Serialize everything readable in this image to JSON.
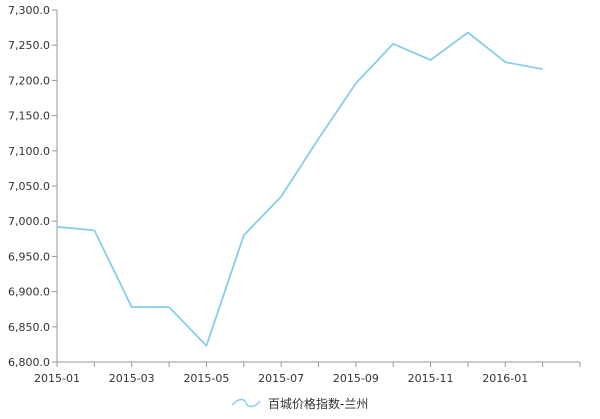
{
  "chart_data": {
    "type": "line",
    "title": "",
    "xlabel": "",
    "ylabel": "",
    "x": [
      "2015-01",
      "2015-02",
      "2015-03",
      "2015-04",
      "2015-05",
      "2015-06",
      "2015-07",
      "2015-08",
      "2015-09",
      "2015-10",
      "2015-11",
      "2015-12",
      "2016-01",
      "2016-02"
    ],
    "x_tick_labels": [
      "2015-01",
      "2015-03",
      "2015-05",
      "2015-07",
      "2015-09",
      "2015-11",
      "2016-01"
    ],
    "ylim": [
      6800,
      7300
    ],
    "y_ticks": [
      "6,800.0",
      "6,850.0",
      "6,900.0",
      "6,950.0",
      "7,000.0",
      "7,050.0",
      "7,100.0",
      "7,150.0",
      "7,200.0",
      "7,250.0",
      "7,300.0"
    ],
    "series": [
      {
        "name": "百城价格指数-兰州",
        "color": "#87ceeb",
        "values": [
          6992,
          6987,
          6878,
          6878,
          6823,
          6980,
          7035,
          7117,
          7196,
          7252,
          7229,
          7268,
          7226,
          7216
        ]
      }
    ],
    "grid": false,
    "legend_position": "bottom-center"
  }
}
